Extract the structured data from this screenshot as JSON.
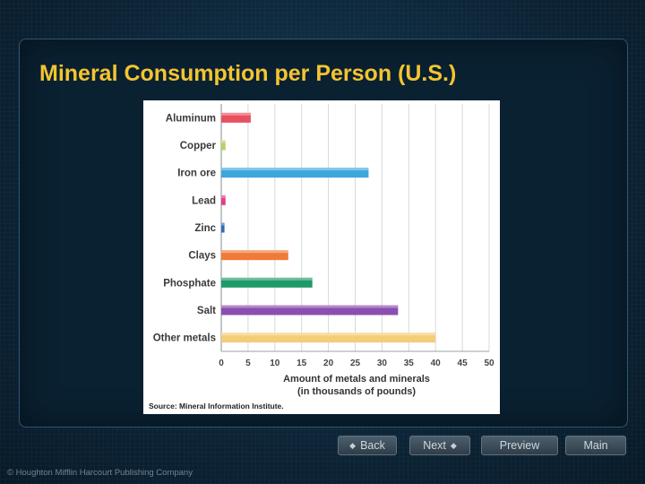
{
  "slide": {
    "title": "Mineral Consumption per Person (U.S.)",
    "copyright": "© Houghton Mifflin Harcourt Publishing Company"
  },
  "nav": {
    "back_label": "Back",
    "next_label": "Next",
    "preview_label": "Preview",
    "main_label": "Main"
  },
  "chart_data": {
    "type": "bar",
    "orientation": "horizontal",
    "categories": [
      "Aluminum",
      "Copper",
      "Iron ore",
      "Lead",
      "Zinc",
      "Clays",
      "Phosphate",
      "Salt",
      "Other metals"
    ],
    "values": [
      5.5,
      0.8,
      27.5,
      0.8,
      0.6,
      12.5,
      17,
      33,
      40
    ],
    "colors": [
      "#e8505f",
      "#b5d36b",
      "#3ba7dc",
      "#e0408a",
      "#2f6fb5",
      "#f07a3a",
      "#1e9a6a",
      "#8a4fb0",
      "#f3cd7a"
    ],
    "xlabel_line1": "Amount of metals and minerals",
    "xlabel_line2": "(in thousands of pounds)",
    "xticks": [
      "0",
      "5",
      "10",
      "15",
      "20",
      "25",
      "30",
      "35",
      "40",
      "45",
      "50"
    ],
    "xlim": [
      0,
      50
    ],
    "grid": true,
    "source": "Source: Mineral Information Institute."
  }
}
